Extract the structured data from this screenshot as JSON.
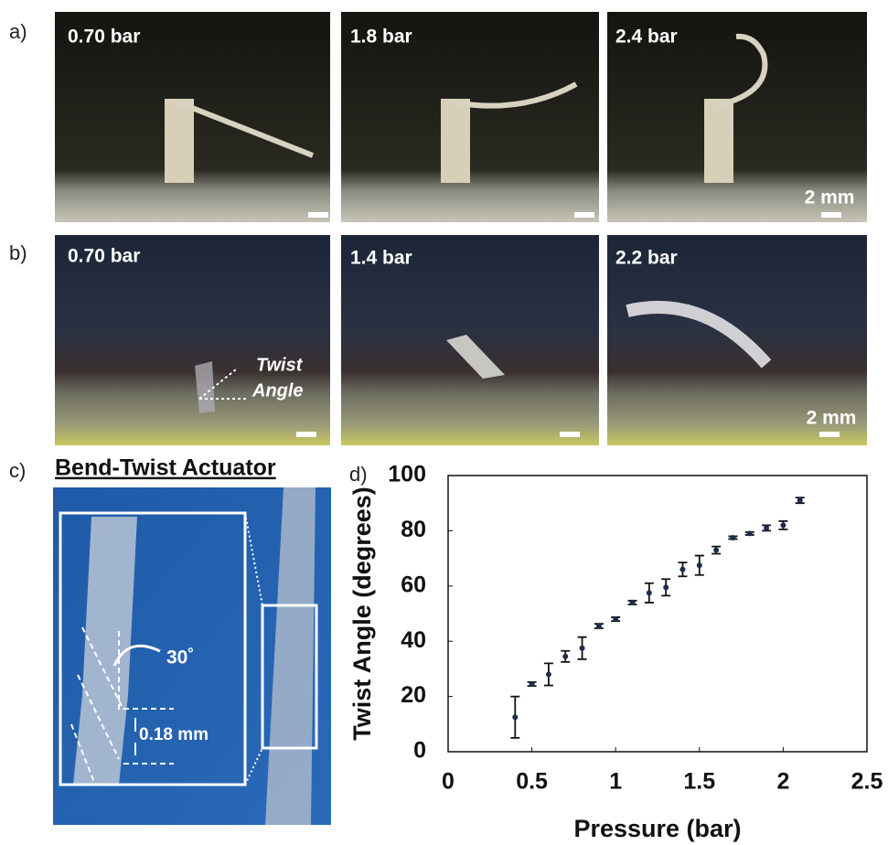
{
  "panel_a": {
    "label": "a)",
    "photos": [
      {
        "label": "0.70 bar"
      },
      {
        "label": "1.8 bar"
      },
      {
        "label": "2.4 bar",
        "scale": "2 mm"
      }
    ]
  },
  "panel_b": {
    "label": "b)",
    "photos": [
      {
        "label": "0.70 bar",
        "annotation": [
          "Twist",
          "Angle"
        ]
      },
      {
        "label": "1.4 bar"
      },
      {
        "label": "2.2 bar",
        "scale": "2 mm"
      }
    ]
  },
  "panel_c": {
    "label": "c)",
    "title": "Bend-Twist Actuator",
    "angle": "30˚",
    "gap": "0.18 mm"
  },
  "panel_d": {
    "label": "d)"
  },
  "chart_data": {
    "type": "scatter",
    "x_label": "Pressure (bar)",
    "y_label": "Twist Angle (degrees)",
    "x": [
      0.4,
      0.5,
      0.6,
      0.7,
      0.8,
      0.9,
      1.0,
      1.1,
      1.2,
      1.3,
      1.4,
      1.5,
      1.6,
      1.7,
      1.8,
      1.9,
      2.0,
      2.1
    ],
    "values": [
      12.5,
      24.5,
      28,
      34.5,
      37.5,
      45.5,
      48,
      54,
      57.5,
      59.5,
      66,
      67.5,
      73,
      77.5,
      79,
      81,
      82,
      91
    ],
    "errors": [
      7.5,
      0.7,
      4,
      2,
      4,
      0.8,
      0.7,
      0.7,
      3.5,
      3,
      2.5,
      3.5,
      1.3,
      0.5,
      0.5,
      1,
      1.5,
      1
    ],
    "color": "#1d2b4c",
    "xlim": [
      0,
      2.5
    ],
    "xticks": [
      0,
      0.5,
      1,
      1.5,
      2,
      2.5
    ],
    "ylim": [
      0,
      100
    ],
    "yticks": [
      0,
      20,
      40,
      60,
      80,
      100
    ]
  }
}
